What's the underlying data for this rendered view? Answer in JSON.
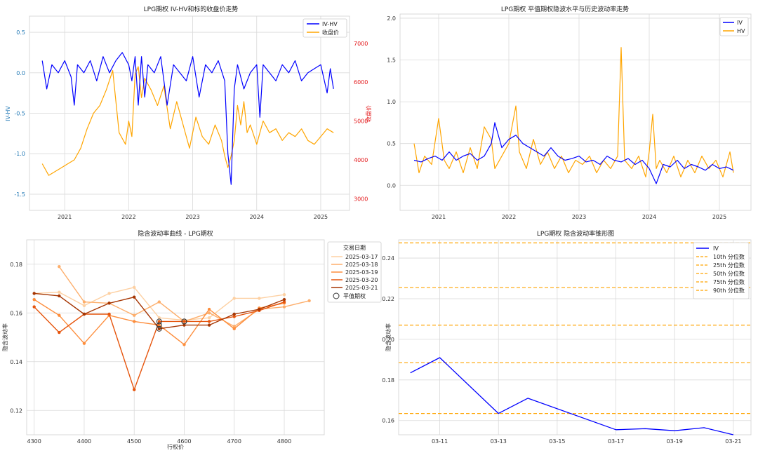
{
  "chart_data": [
    {
      "type": "line",
      "title": "LPG期权 IV-HV和标的收盘价走势",
      "xlabel": "",
      "ylabel": "IV-HV",
      "ylabel_right": "收盘价",
      "x_ticks": [
        "2021",
        "2022",
        "2023",
        "2024",
        "2025"
      ],
      "x_tick_values": [
        2021,
        2022,
        2023,
        2024,
        2025
      ],
      "xlim": [
        2020.45,
        2025.45
      ],
      "ylim": [
        -1.7,
        0.7
      ],
      "ylim_right": [
        2700,
        7700
      ],
      "y_ticks": [
        "0.5",
        "0.0",
        "-0.5",
        "-1.0",
        "-1.5"
      ],
      "y_tick_values": [
        0.5,
        0.0,
        -0.5,
        -1.0,
        -1.5
      ],
      "y_ticks_right": [
        "7000",
        "6000",
        "5000",
        "4000",
        "3000"
      ],
      "y_tick_values_right": [
        7000,
        6000,
        5000,
        4000,
        3000
      ],
      "left_axis_color": "#1f77b4",
      "right_axis_color": "#e41a1c",
      "legend": [
        "IV-HV",
        "收盘价"
      ],
      "legend_position": "top-right",
      "series": [
        {
          "name": "IV-HV",
          "color": "#0000ff",
          "axis": "left",
          "x": [
            2020.65,
            2020.72,
            2020.8,
            2020.9,
            2021.0,
            2021.1,
            2021.15,
            2021.2,
            2021.3,
            2021.4,
            2021.5,
            2021.6,
            2021.7,
            2021.8,
            2021.9,
            2022.0,
            2022.05,
            2022.1,
            2022.15,
            2022.2,
            2022.25,
            2022.3,
            2022.4,
            2022.5,
            2022.6,
            2022.7,
            2022.8,
            2022.9,
            2023.0,
            2023.1,
            2023.2,
            2023.3,
            2023.4,
            2023.5,
            2023.55,
            2023.6,
            2023.65,
            2023.7,
            2023.8,
            2023.9,
            2024.0,
            2024.05,
            2024.1,
            2024.2,
            2024.3,
            2024.4,
            2024.5,
            2024.6,
            2024.7,
            2024.8,
            2024.9,
            2025.0,
            2025.1,
            2025.15,
            2025.2
          ],
          "values": [
            0.15,
            -0.2,
            0.1,
            0.0,
            0.15,
            -0.05,
            -0.4,
            0.1,
            0.0,
            0.15,
            -0.1,
            0.2,
            0.0,
            0.15,
            0.25,
            0.1,
            -0.1,
            0.2,
            -0.4,
            0.2,
            -0.3,
            0.1,
            0.0,
            0.2,
            -0.4,
            0.1,
            0.0,
            -0.1,
            0.2,
            -0.3,
            0.1,
            0.0,
            0.15,
            -0.1,
            -1.0,
            -1.38,
            -0.2,
            0.1,
            -0.2,
            0.0,
            0.1,
            -0.55,
            0.1,
            0.0,
            -0.1,
            0.1,
            0.0,
            0.15,
            -0.1,
            0.0,
            0.05,
            0.1,
            -0.25,
            0.05,
            -0.2
          ]
        },
        {
          "name": "收盘价",
          "color": "#ffa500",
          "axis": "right",
          "x": [
            2020.65,
            2020.75,
            2020.85,
            2020.95,
            2021.05,
            2021.15,
            2021.25,
            2021.35,
            2021.45,
            2021.55,
            2021.65,
            2021.75,
            2021.85,
            2021.95,
            2022.0,
            2022.05,
            2022.1,
            2022.15,
            2022.2,
            2022.25,
            2022.35,
            2022.45,
            2022.55,
            2022.65,
            2022.75,
            2022.85,
            2022.95,
            2023.05,
            2023.15,
            2023.25,
            2023.35,
            2023.45,
            2023.5,
            2023.55,
            2023.6,
            2023.65,
            2023.7,
            2023.75,
            2023.8,
            2023.85,
            2023.9,
            2024.0,
            2024.05,
            2024.1,
            2024.2,
            2024.3,
            2024.4,
            2024.5,
            2024.6,
            2024.7,
            2024.8,
            2024.9,
            2025.0,
            2025.1,
            2025.2
          ],
          "values": [
            3900,
            3600,
            3700,
            3800,
            3900,
            4000,
            4300,
            4800,
            5200,
            5400,
            5800,
            6300,
            4700,
            4400,
            5000,
            4600,
            6200,
            6400,
            5600,
            6100,
            5800,
            5400,
            5900,
            4800,
            5500,
            4900,
            4300,
            5100,
            4600,
            4400,
            4900,
            4500,
            4100,
            3800,
            4100,
            4500,
            5400,
            4900,
            5500,
            4700,
            4900,
            4400,
            4700,
            5000,
            4700,
            4800,
            4500,
            4700,
            4600,
            4800,
            4500,
            4400,
            4600,
            4800,
            4700
          ]
        }
      ]
    },
    {
      "type": "line",
      "title": "LPG期权 平值期权隐波水平与历史波动率走势",
      "xlabel": "",
      "ylabel": "",
      "x_ticks": [
        "2021",
        "2022",
        "2023",
        "2024",
        "2025"
      ],
      "x_tick_values": [
        2021,
        2022,
        2023,
        2024,
        2025
      ],
      "xlim": [
        2020.45,
        2025.45
      ],
      "ylim": [
        -0.3,
        2.05
      ],
      "y_ticks": [
        "2.0",
        "1.5",
        "1.0",
        "0.5",
        "0.0"
      ],
      "y_tick_values": [
        2.0,
        1.5,
        1.0,
        0.5,
        0.0
      ],
      "legend": [
        "IV",
        "HV"
      ],
      "legend_position": "top-right",
      "series": [
        {
          "name": "IV",
          "color": "#0000ff",
          "x": [
            2020.65,
            2020.75,
            2020.85,
            2020.95,
            2021.05,
            2021.15,
            2021.25,
            2021.35,
            2021.45,
            2021.55,
            2021.65,
            2021.75,
            2021.8,
            2021.9,
            2022.0,
            2022.1,
            2022.2,
            2022.3,
            2022.4,
            2022.5,
            2022.6,
            2022.7,
            2022.8,
            2022.9,
            2023.0,
            2023.1,
            2023.2,
            2023.3,
            2023.4,
            2023.5,
            2023.6,
            2023.7,
            2023.8,
            2023.9,
            2024.0,
            2024.1,
            2024.2,
            2024.3,
            2024.4,
            2024.5,
            2024.6,
            2024.7,
            2024.8,
            2024.9,
            2025.0,
            2025.1,
            2025.2
          ],
          "values": [
            0.3,
            0.28,
            0.32,
            0.35,
            0.3,
            0.4,
            0.3,
            0.35,
            0.38,
            0.3,
            0.35,
            0.5,
            0.75,
            0.45,
            0.55,
            0.6,
            0.5,
            0.45,
            0.4,
            0.35,
            0.45,
            0.35,
            0.3,
            0.32,
            0.35,
            0.28,
            0.3,
            0.25,
            0.35,
            0.3,
            0.28,
            0.32,
            0.25,
            0.3,
            0.2,
            0.02,
            0.25,
            0.22,
            0.3,
            0.2,
            0.25,
            0.22,
            0.18,
            0.25,
            0.2,
            0.22,
            0.18
          ]
        },
        {
          "name": "HV",
          "color": "#ffa500",
          "x": [
            2020.65,
            2020.72,
            2020.8,
            2020.9,
            2021.0,
            2021.08,
            2021.15,
            2021.25,
            2021.35,
            2021.45,
            2021.55,
            2021.65,
            2021.75,
            2021.8,
            2021.9,
            2022.0,
            2022.1,
            2022.15,
            2022.25,
            2022.35,
            2022.45,
            2022.55,
            2022.65,
            2022.75,
            2022.85,
            2022.95,
            2023.05,
            2023.15,
            2023.25,
            2023.35,
            2023.45,
            2023.55,
            2023.6,
            2023.65,
            2023.75,
            2023.85,
            2023.95,
            2024.0,
            2024.05,
            2024.1,
            2024.15,
            2024.25,
            2024.35,
            2024.45,
            2024.55,
            2024.65,
            2024.75,
            2024.85,
            2024.95,
            2025.05,
            2025.15,
            2025.2
          ],
          "values": [
            0.5,
            0.15,
            0.35,
            0.25,
            0.8,
            0.3,
            0.2,
            0.4,
            0.15,
            0.45,
            0.2,
            0.7,
            0.55,
            0.2,
            0.35,
            0.5,
            0.95,
            0.4,
            0.2,
            0.55,
            0.25,
            0.4,
            0.2,
            0.35,
            0.15,
            0.3,
            0.25,
            0.35,
            0.15,
            0.3,
            0.2,
            0.35,
            1.65,
            0.3,
            0.2,
            0.35,
            0.1,
            0.4,
            0.85,
            0.2,
            0.3,
            0.15,
            0.35,
            0.1,
            0.3,
            0.15,
            0.35,
            0.2,
            0.3,
            0.1,
            0.4,
            0.15
          ]
        }
      ]
    },
    {
      "type": "line",
      "title": "隐含波动率曲线 - LPG期权",
      "xlabel": "行权价",
      "ylabel": "隐含波动率",
      "x_ticks": [
        "4300",
        "4400",
        "4500",
        "4600",
        "4700",
        "4800"
      ],
      "x_tick_values": [
        4300,
        4400,
        4500,
        4600,
        4700,
        4800
      ],
      "xlim": [
        4285,
        4880
      ],
      "ylim": [
        0.11,
        0.19
      ],
      "y_ticks": [
        "0.18",
        "0.16",
        "0.14",
        "0.12"
      ],
      "y_tick_values": [
        0.18,
        0.16,
        0.14,
        0.12
      ],
      "legend_title": "交易日期",
      "legend_position": "outside-right",
      "atm_label": "平值期权",
      "series": [
        {
          "name": "2025-03-17",
          "color": "#fdd0a2",
          "x": [
            4300,
            4350,
            4400,
            4450,
            4500,
            4550,
            4600,
            4650,
            4700,
            4750,
            4800
          ],
          "values": [
            0.168,
            0.1685,
            0.163,
            0.168,
            0.1705,
            0.158,
            0.157,
            0.158,
            0.166,
            0.166,
            0.1675
          ]
        },
        {
          "name": "2025-03-18",
          "color": "#fdae6b",
          "x": [
            4350,
            4400,
            4450,
            4500,
            4550,
            4600,
            4650,
            4700,
            4750,
            4800,
            4850
          ],
          "values": [
            0.179,
            0.1645,
            0.164,
            0.159,
            0.1645,
            0.1565,
            0.16,
            0.1545,
            0.1615,
            0.1625,
            0.165
          ]
        },
        {
          "name": "2025-03-19",
          "color": "#fd8d3c",
          "x": [
            4300,
            4350,
            4400,
            4450,
            4500,
            4550,
            4600,
            4650,
            4700,
            4750,
            4800
          ],
          "values": [
            0.1655,
            0.159,
            0.1475,
            0.159,
            0.1565,
            0.155,
            0.147,
            0.1615,
            0.1535,
            0.162,
            0.164
          ]
        },
        {
          "name": "2025-03-20",
          "color": "#e6550d",
          "x": [
            4300,
            4350,
            4400,
            4450,
            4500,
            4550,
            4600,
            4650,
            4700,
            4750,
            4800
          ],
          "values": [
            0.1625,
            0.152,
            0.1595,
            0.1595,
            0.1285,
            0.1565,
            0.1565,
            0.1565,
            0.1585,
            0.161,
            0.1645
          ]
        },
        {
          "name": "2025-03-21",
          "color": "#a63603",
          "x": [
            4300,
            4350,
            4400,
            4450,
            4500,
            4550,
            4600,
            4650,
            4700,
            4750,
            4800
          ],
          "values": [
            0.168,
            0.167,
            0.1595,
            0.164,
            0.1665,
            0.1535,
            0.155,
            0.155,
            0.1595,
            0.1615,
            0.1655
          ]
        }
      ],
      "atm_points": [
        {
          "x": 4550,
          "y": 0.1565
        },
        {
          "x": 4550,
          "y": 0.155
        },
        {
          "x": 4550,
          "y": 0.1535
        },
        {
          "x": 4600,
          "y": 0.1565
        },
        {
          "x": 4600,
          "y": 0.1565
        }
      ]
    },
    {
      "type": "line",
      "title": "LPG期权 隐含波动率锥形图",
      "xlabel": "",
      "ylabel": "隐含波动率",
      "x_ticks": [
        "03-11",
        "03-13",
        "03-15",
        "03-17",
        "03-19",
        "03-21"
      ],
      "x_tick_values": [
        11,
        13,
        15,
        17,
        19,
        21
      ],
      "xlim": [
        9.6,
        21.6
      ],
      "ylim": [
        0.153,
        0.249
      ],
      "y_ticks": [
        "0.24",
        "0.22",
        "0.20",
        "0.18",
        "0.16"
      ],
      "y_tick_values": [
        0.24,
        0.22,
        0.2,
        0.18,
        0.16
      ],
      "legend_position": "top-right",
      "series": [
        {
          "name": "IV",
          "color": "#0000ff",
          "x": [
            10,
            11,
            13,
            14,
            17,
            18,
            19,
            20,
            21
          ],
          "values": [
            0.1835,
            0.191,
            0.1635,
            0.171,
            0.1555,
            0.156,
            0.155,
            0.1565,
            0.153
          ]
        }
      ],
      "percentiles": [
        {
          "name": "10th 分位数",
          "value": 0.1635
        },
        {
          "name": "25th 分位数",
          "value": 0.1885
        },
        {
          "name": "50th 分位数",
          "value": 0.207
        },
        {
          "name": "75th 分位数",
          "value": 0.2255
        },
        {
          "name": "90th 分位数",
          "value": 0.2475
        }
      ],
      "percentile_color": "#ffa500"
    }
  ]
}
